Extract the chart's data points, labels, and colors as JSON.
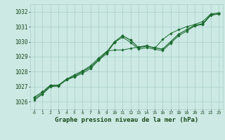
{
  "title": "Graphe pression niveau de la mer (hPa)",
  "bg_color": "#cce9e4",
  "grid_color": "#aacfc9",
  "line_color": "#1a6b2e",
  "text_color": "#1a4a1a",
  "xlim": [
    -0.5,
    23.5
  ],
  "ylim": [
    1025.5,
    1032.5
  ],
  "yticks": [
    1026,
    1027,
    1028,
    1029,
    1030,
    1031,
    1032
  ],
  "xticks": [
    0,
    1,
    2,
    3,
    4,
    5,
    6,
    7,
    8,
    9,
    10,
    11,
    12,
    13,
    14,
    15,
    16,
    17,
    18,
    19,
    20,
    21,
    22,
    23
  ],
  "series1_x": [
    0,
    1,
    2,
    3,
    4,
    5,
    6,
    7,
    8,
    9,
    10,
    11,
    12,
    13,
    14,
    15,
    16,
    17,
    18,
    19,
    20,
    21,
    22,
    23
  ],
  "series1_y": [
    1026.2,
    1026.55,
    1027.05,
    1027.05,
    1027.45,
    1027.65,
    1027.9,
    1028.2,
    1028.75,
    1029.2,
    1029.95,
    1030.3,
    1029.95,
    1029.5,
    1029.6,
    1029.5,
    1029.4,
    1029.9,
    1030.4,
    1030.7,
    1031.05,
    1031.15,
    1031.75,
    1031.85
  ],
  "series2_x": [
    0,
    1,
    2,
    3,
    4,
    5,
    6,
    7,
    8,
    9,
    10,
    11,
    12,
    13,
    14,
    15,
    16,
    17,
    18,
    19,
    20,
    21,
    22,
    23
  ],
  "series2_y": [
    1026.1,
    1026.5,
    1027.0,
    1027.05,
    1027.5,
    1027.8,
    1028.05,
    1028.4,
    1028.9,
    1029.35,
    1029.45,
    1029.45,
    1029.55,
    1029.65,
    1029.75,
    1029.55,
    1030.15,
    1030.55,
    1030.8,
    1031.0,
    1031.15,
    1031.35,
    1031.85,
    1031.9
  ],
  "series3_x": [
    0,
    1,
    2,
    3,
    4,
    5,
    6,
    7,
    8,
    9,
    10,
    11,
    12,
    13,
    14,
    15,
    16,
    17,
    18,
    19,
    20,
    21,
    22,
    23
  ],
  "series3_y": [
    1026.3,
    1026.65,
    1027.1,
    1027.1,
    1027.5,
    1027.7,
    1028.0,
    1028.3,
    1028.8,
    1029.3,
    1030.0,
    1030.4,
    1030.1,
    1029.6,
    1029.7,
    1029.6,
    1029.5,
    1030.0,
    1030.5,
    1030.8,
    1031.1,
    1031.2,
    1031.8,
    1031.9
  ]
}
